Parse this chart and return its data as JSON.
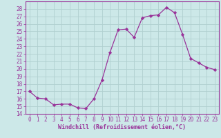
{
  "x": [
    0,
    1,
    2,
    3,
    4,
    5,
    6,
    7,
    8,
    9,
    10,
    11,
    12,
    13,
    14,
    15,
    16,
    17,
    18,
    19,
    20,
    21,
    22,
    23
  ],
  "y": [
    17.0,
    16.1,
    16.0,
    15.2,
    15.3,
    15.3,
    14.8,
    14.7,
    16.0,
    18.5,
    22.2,
    25.2,
    25.3,
    24.2,
    26.8,
    27.1,
    27.2,
    28.2,
    27.5,
    24.6,
    21.4,
    20.8,
    20.2,
    19.9
  ],
  "line_color": "#993399",
  "marker": "D",
  "marker_size": 2.2,
  "bg_color": "#cce8e8",
  "grid_color": "#b0d0d0",
  "xlabel": "Windchill (Refroidissement éolien,°C)",
  "xlabel_color": "#993399",
  "tick_color": "#993399",
  "spine_color": "#993399",
  "ylim": [
    14,
    29
  ],
  "xlim": [
    -0.5,
    23.5
  ],
  "yticks": [
    14,
    15,
    16,
    17,
    18,
    19,
    20,
    21,
    22,
    23,
    24,
    25,
    26,
    27,
    28
  ],
  "xticks": [
    0,
    1,
    2,
    3,
    4,
    5,
    6,
    7,
    8,
    9,
    10,
    11,
    12,
    13,
    14,
    15,
    16,
    17,
    18,
    19,
    20,
    21,
    22,
    23
  ],
  "tick_fontsize": 5.5,
  "xlabel_fontsize": 6.0,
  "xlabel_fontweight": "bold"
}
